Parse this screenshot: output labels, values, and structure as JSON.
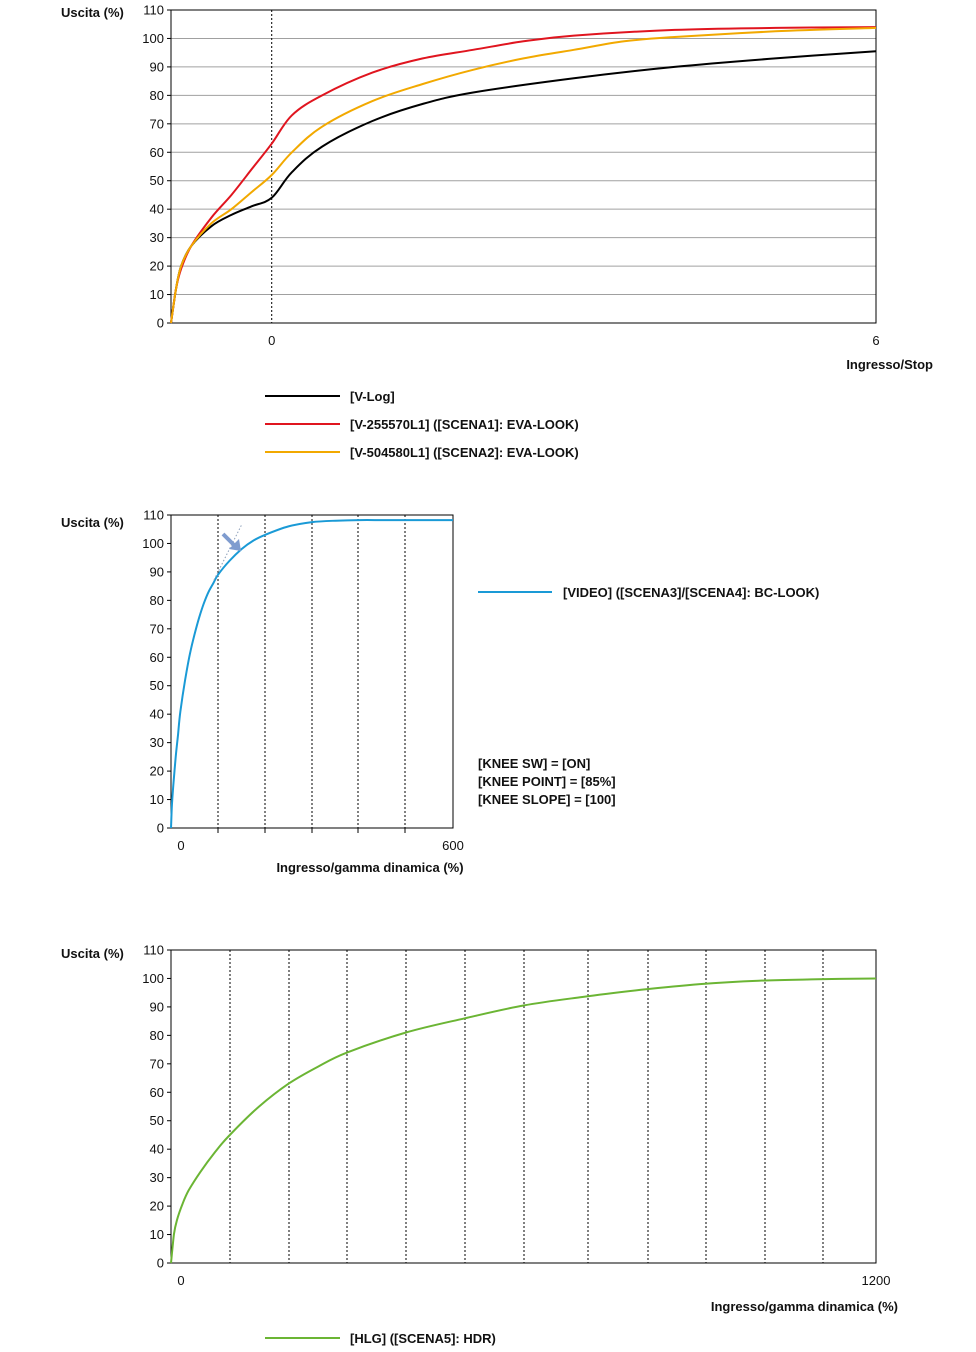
{
  "chart_data": [
    {
      "type": "line",
      "ylabel": "Uscita (%)",
      "xlabel": "Ingresso/Stop",
      "ylim": [
        0,
        110
      ],
      "yticks": [
        0,
        10,
        20,
        30,
        40,
        50,
        60,
        70,
        80,
        90,
        100,
        110
      ],
      "xlim": [
        -1,
        6
      ],
      "xticks": [
        0,
        6
      ],
      "grid": "horizontal",
      "legend": "bottom",
      "series": [
        {
          "name": "[V-Log]",
          "color": "#000000",
          "x": [
            -1,
            -0.95,
            -0.9,
            -0.8,
            -0.6,
            -0.4,
            -0.2,
            0,
            0.2,
            0.5,
            1,
            1.5,
            2,
            3,
            4,
            5,
            6
          ],
          "y": [
            0,
            12,
            20,
            27,
            34,
            38,
            41,
            44,
            53,
            62,
            71,
            77,
            81,
            86,
            90,
            93,
            95.5
          ]
        },
        {
          "name": "[V-255570L1] ([SCENA1]: EVA-LOOK)",
          "color": "#e0151f",
          "x": [
            -1,
            -0.95,
            -0.9,
            -0.8,
            -0.6,
            -0.4,
            -0.2,
            0,
            0.2,
            0.5,
            1,
            1.5,
            2,
            2.5,
            3,
            4,
            5,
            6
          ],
          "y": [
            0,
            12,
            19,
            27,
            37,
            45,
            54,
            63,
            73,
            80,
            88,
            93,
            96,
            99,
            101,
            103,
            103.7,
            104
          ]
        },
        {
          "name": "[V-504580L1] ([SCENA2]: EVA-LOOK)",
          "color": "#f2a900",
          "x": [
            -1,
            -0.95,
            -0.9,
            -0.8,
            -0.6,
            -0.4,
            -0.2,
            0,
            0.2,
            0.5,
            1,
            1.5,
            2,
            2.5,
            3,
            3.5,
            4,
            5,
            6
          ],
          "y": [
            0,
            12,
            20,
            27,
            35,
            40,
            46,
            52,
            60,
            69,
            78,
            84,
            89,
            93,
            96,
            99,
            100.5,
            102.5,
            103.7
          ]
        }
      ]
    },
    {
      "type": "line",
      "ylabel": "Uscita (%)",
      "xlabel": "Ingresso/gamma dinamica (%)",
      "ylim": [
        0,
        110
      ],
      "yticks": [
        0,
        10,
        20,
        30,
        40,
        50,
        60,
        70,
        80,
        90,
        100,
        110
      ],
      "xlim": [
        0,
        600
      ],
      "xticks": [
        0,
        600
      ],
      "grid": "both",
      "legend": "right",
      "annotations": [
        "[KNEE SW] = [ON]",
        "[KNEE POINT] = [85%]",
        "[KNEE SLOPE] = [100]"
      ],
      "series": [
        {
          "name": "[VIDEO] ([SCENA3]/[SCENA4]: BC-LOOK)",
          "color": "#1a9ad6",
          "x": [
            0,
            2,
            5,
            10,
            15,
            20,
            30,
            40,
            50,
            60,
            70,
            80,
            90,
            100,
            125,
            150,
            175,
            200,
            250,
            300,
            350,
            400,
            450,
            500,
            550,
            600
          ],
          "y": [
            0,
            8,
            15,
            25,
            33,
            41,
            52,
            61,
            68,
            74,
            79,
            83,
            86,
            89,
            94,
            98,
            101,
            103,
            106,
            107.5,
            108,
            108.2,
            108.2,
            108.2,
            108.2,
            108.2
          ]
        }
      ]
    },
    {
      "type": "line",
      "ylabel": "Uscita (%)",
      "xlabel": "Ingresso/gamma dinamica (%)",
      "ylim": [
        0,
        110
      ],
      "yticks": [
        0,
        10,
        20,
        30,
        40,
        50,
        60,
        70,
        80,
        90,
        100,
        110
      ],
      "xlim": [
        0,
        1200
      ],
      "xticks": [
        0,
        1200
      ],
      "grid": "both",
      "legend": "bottom",
      "series": [
        {
          "name": "[HLG] ([SCENA5]: HDR)",
          "color": "#6bb534",
          "x": [
            0,
            5,
            10,
            20,
            30,
            50,
            75,
            100,
            150,
            200,
            250,
            300,
            400,
            500,
            600,
            700,
            800,
            900,
            1000,
            1100,
            1200
          ],
          "y": [
            0,
            10,
            15,
            21,
            25.5,
            32,
            39,
            45,
            55,
            63,
            69,
            74,
            81,
            86,
            90.5,
            93.5,
            96,
            98,
            99.2,
            99.7,
            100
          ]
        }
      ]
    }
  ]
}
